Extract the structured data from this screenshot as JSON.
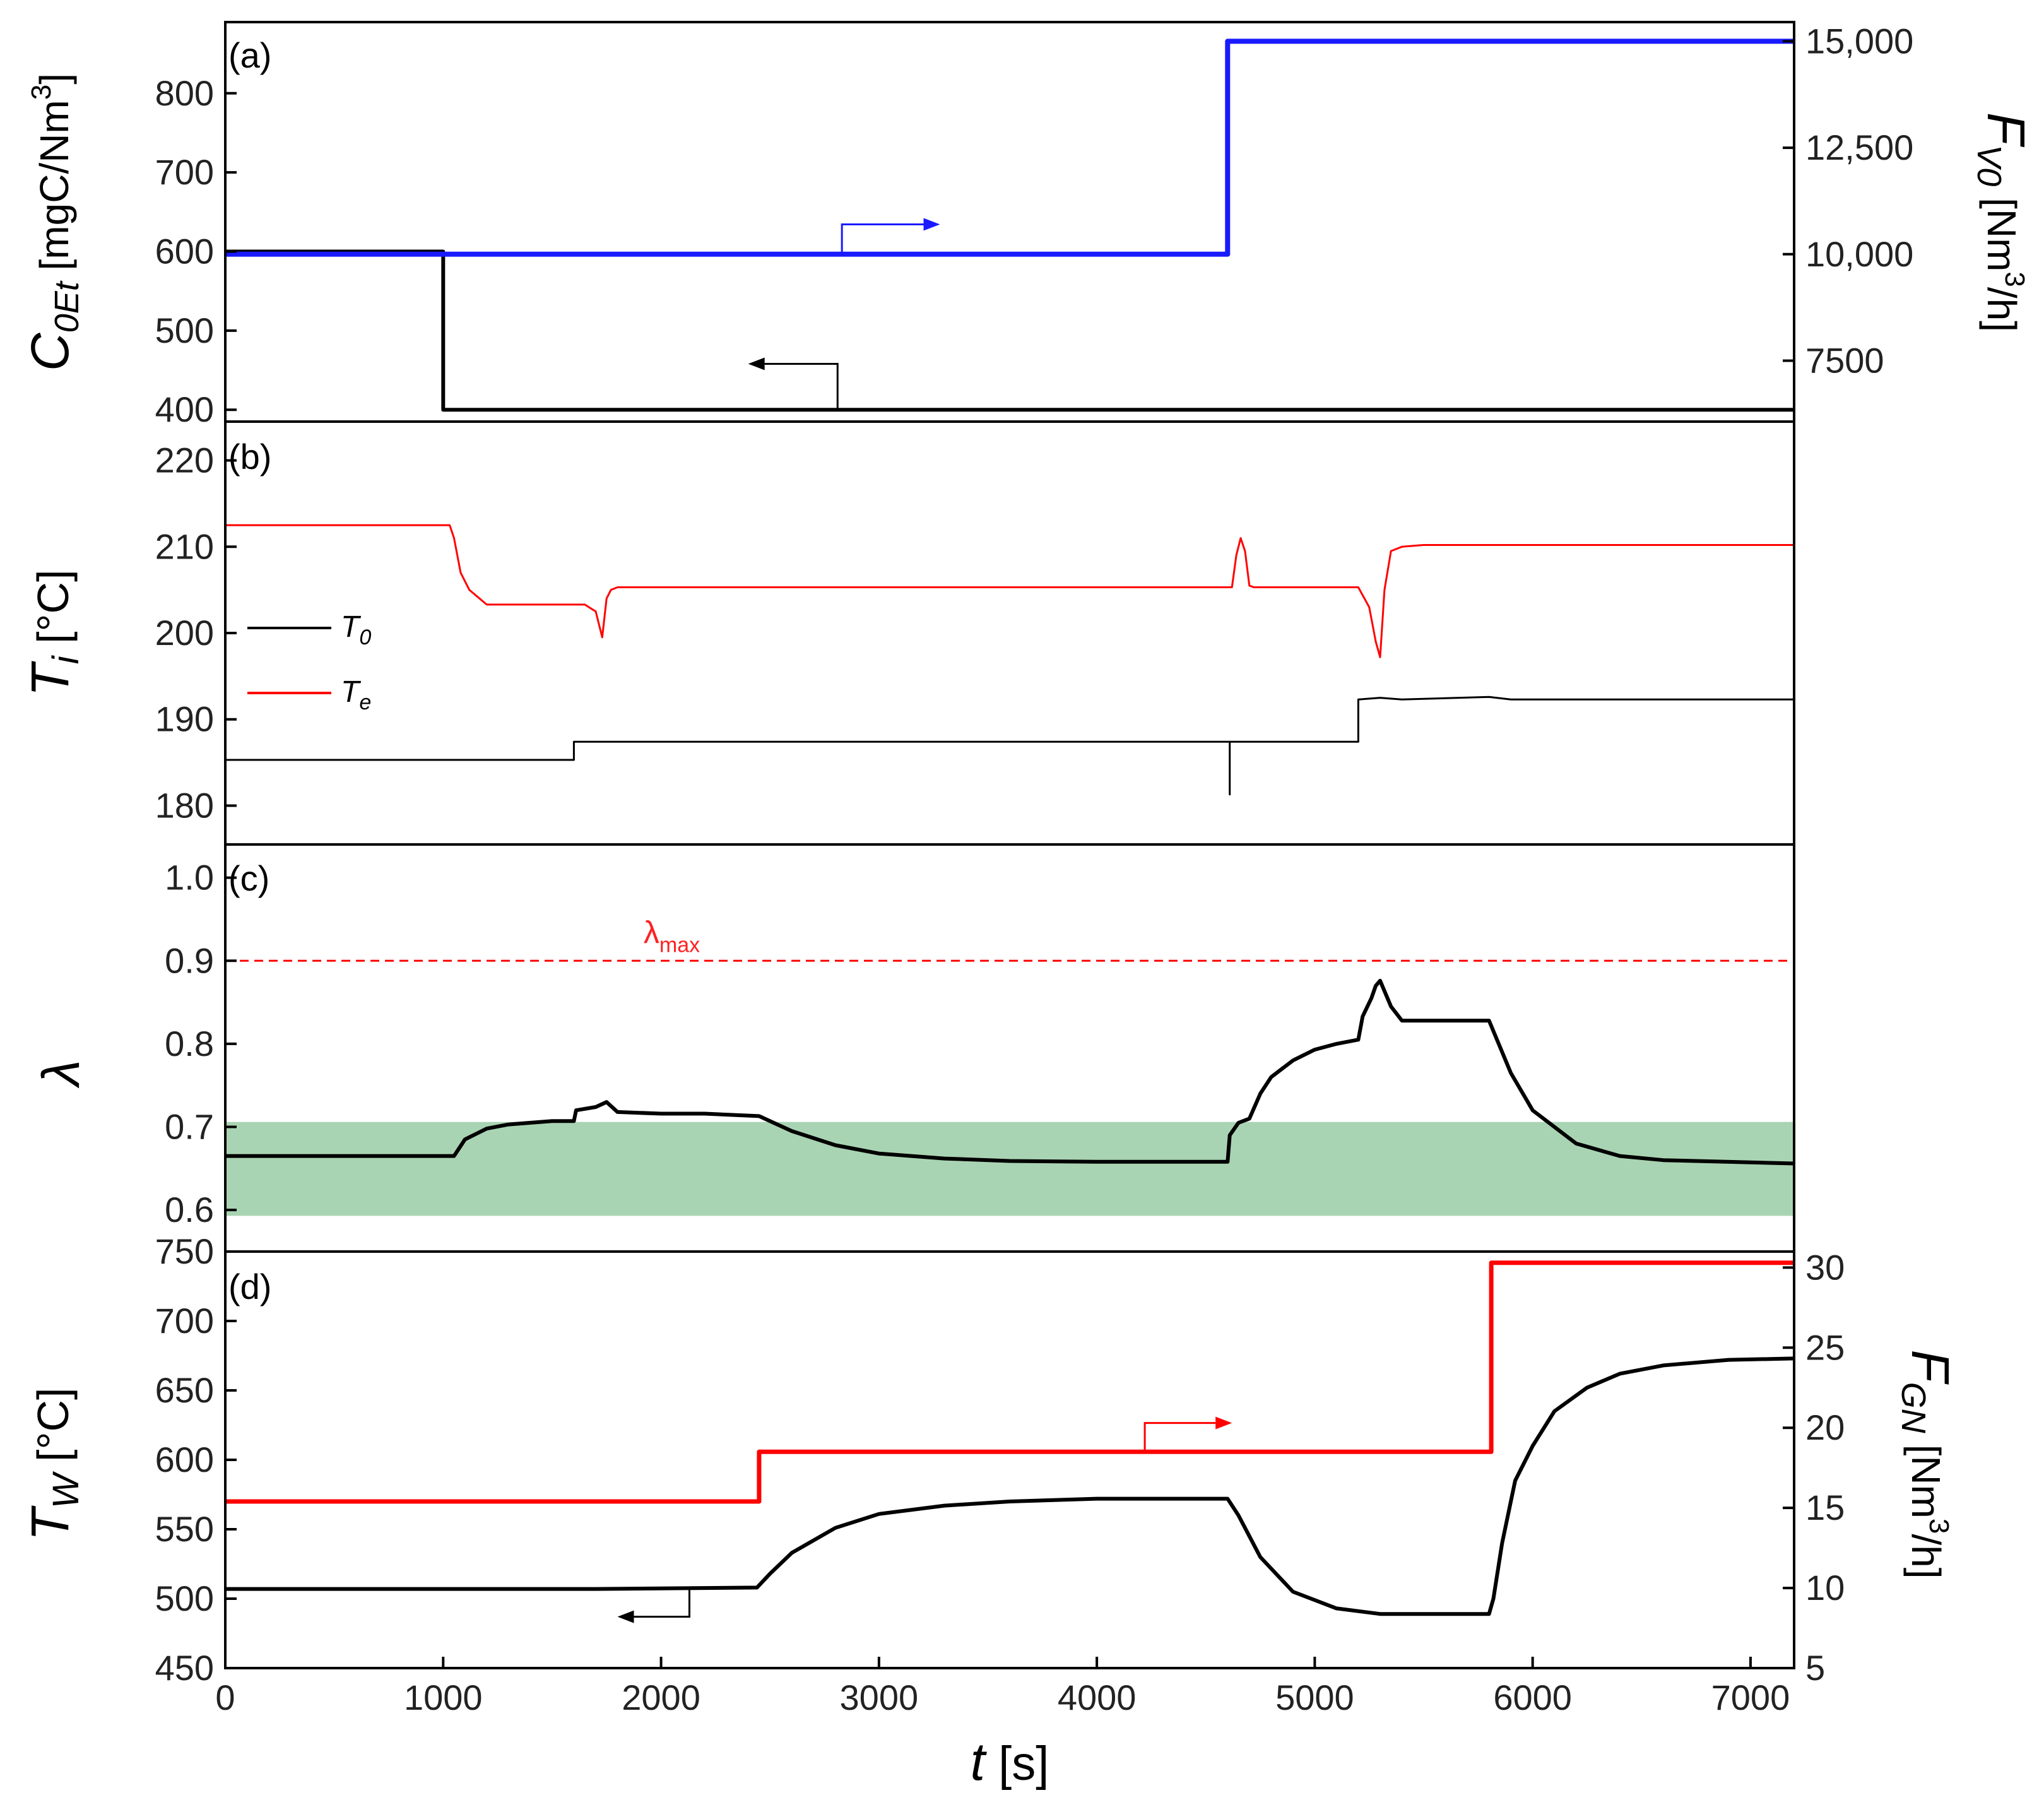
{
  "chart_data": [
    {
      "panel": "(a)",
      "type": "line",
      "ylabel": {
        "symbol": "C",
        "subscript": "0Et",
        "unit": " [mgC/Nm",
        "sup": "3",
        "unit_end": "]"
      },
      "y2label": {
        "symbol": "F",
        "subscript": "V0",
        "unit": " [Nm",
        "sup": "3",
        "unit_end": "/h]"
      },
      "xlim": [
        0,
        7200
      ],
      "ylim": [
        385,
        890
      ],
      "yticks": [
        400,
        500,
        600,
        700,
        800
      ],
      "y2lim": [
        6070,
        15450
      ],
      "y2ticks": [
        7500,
        10000,
        12500,
        15000
      ],
      "y2ticklabels": [
        "7500",
        "10,000",
        "12,500",
        "15,000"
      ],
      "series": [
        {
          "name": "C0Et",
          "axis": "left",
          "color": "#000000",
          "width": 6,
          "x": [
            0,
            1000,
            1000,
            7200
          ],
          "y": [
            600,
            600,
            400,
            400
          ]
        },
        {
          "name": "FV0",
          "axis": "right",
          "color": "#1a1aff",
          "width": 8,
          "x": [
            0,
            4600,
            4600,
            7200
          ],
          "y": [
            10000,
            10000,
            15000,
            15000
          ]
        }
      ],
      "annotations": [
        {
          "type": "arrow-right",
          "x0": 2830,
          "y_from": 10000,
          "y_to": 10700,
          "x1": 3280,
          "axis": "right",
          "color": "#1a1aff"
        },
        {
          "type": "arrow-left",
          "x0": 2810,
          "y_from": 400,
          "y_to": 458,
          "x1": 2400,
          "axis": "left",
          "color": "#000000"
        }
      ]
    },
    {
      "panel": "(b)",
      "type": "line",
      "ylabel": {
        "symbol": "T",
        "subscript": "i",
        "unit": " [°C]"
      },
      "xlim": [
        0,
        7200
      ],
      "ylim": [
        175.5,
        224.5
      ],
      "yticks": [
        180,
        190,
        200,
        210,
        220
      ],
      "legend": {
        "position": "left",
        "entries": [
          {
            "symbol": "T",
            "subscript": "0",
            "color": "#000000"
          },
          {
            "symbol": "T",
            "subscript": "e",
            "color": "#ff0000"
          }
        ]
      },
      "series": [
        {
          "name": "T0",
          "axis": "left",
          "color": "#000000",
          "width": 3,
          "x": [
            0,
            1600,
            1600,
            4610,
            4610,
            4610,
            4620,
            4620,
            5200,
            5200,
            5300,
            5400,
            5800,
            5900,
            7200
          ],
          "y": [
            185.3,
            185.3,
            187.4,
            187.4,
            181.3,
            187.4,
            187.4,
            187.4,
            187.4,
            192.3,
            192.5,
            192.3,
            192.6,
            192.3,
            192.3
          ]
        },
        {
          "name": "Te",
          "axis": "left",
          "color": "#ff0000",
          "width": 3,
          "x": [
            0,
            1030,
            1050,
            1080,
            1120,
            1200,
            1400,
            1650,
            1700,
            1730,
            1750,
            1770,
            1800,
            1900,
            2200,
            3000,
            4000,
            4620,
            4640,
            4660,
            4680,
            4700,
            4720,
            5000,
            5200,
            5250,
            5280,
            5300,
            5320,
            5350,
            5400,
            5500,
            6000,
            7200
          ],
          "y": [
            212.5,
            212.5,
            211,
            207,
            205,
            203.3,
            203.3,
            203.3,
            202.5,
            199.5,
            204,
            205,
            205.3,
            205.3,
            205.3,
            205.3,
            205.3,
            205.3,
            209,
            211,
            209.5,
            205.5,
            205.3,
            205.3,
            205.3,
            203,
            199,
            197.2,
            205,
            209.5,
            210,
            210.2,
            210.2,
            210.2
          ]
        }
      ]
    },
    {
      "panel": "(c)",
      "type": "line",
      "ylabel": {
        "symbol": "λ"
      },
      "xlim": [
        0,
        7200
      ],
      "ylim": [
        0.55,
        1.04
      ],
      "yticks": [
        0.6,
        0.7,
        0.8,
        0.9,
        1.0
      ],
      "yticklabels": [
        "0.6",
        "0.7",
        "0.8",
        "0.9",
        "1.0"
      ],
      "band": {
        "y0": 0.593,
        "y1": 0.706,
        "color": "#a9d4b3"
      },
      "reference_line": {
        "y": 0.9,
        "color": "#ff0000",
        "style": "dashed",
        "label": "λ",
        "label_sub": "max"
      },
      "series": [
        {
          "name": "lambda",
          "axis": "left",
          "color": "#000000",
          "width": 6,
          "x": [
            0,
            1050,
            1100,
            1200,
            1300,
            1500,
            1600,
            1610,
            1700,
            1750,
            1800,
            2000,
            2200,
            2450,
            2600,
            2800,
            3000,
            3300,
            3600,
            4000,
            4600,
            4610,
            4650,
            4700,
            4750,
            4800,
            4900,
            5000,
            5100,
            5200,
            5220,
            5260,
            5280,
            5300,
            5350,
            5400,
            5700,
            5800,
            5900,
            6000,
            6200,
            6400,
            6600,
            7200
          ],
          "y": [
            0.665,
            0.665,
            0.685,
            0.698,
            0.703,
            0.707,
            0.707,
            0.72,
            0.724,
            0.73,
            0.718,
            0.716,
            0.716,
            0.713,
            0.695,
            0.678,
            0.668,
            0.662,
            0.659,
            0.658,
            0.658,
            0.69,
            0.705,
            0.71,
            0.74,
            0.76,
            0.78,
            0.793,
            0.8,
            0.805,
            0.833,
            0.855,
            0.87,
            0.876,
            0.845,
            0.828,
            0.828,
            0.828,
            0.765,
            0.72,
            0.68,
            0.665,
            0.66,
            0.656
          ]
        }
      ]
    },
    {
      "panel": "(d)",
      "type": "line",
      "ylabel": {
        "symbol": "T",
        "subscript": "W",
        "unit": " [°C]"
      },
      "y2label": {
        "symbol": "F",
        "subscript": "GN",
        "unit": " [Nm",
        "sup": "3",
        "unit_end": "/h]"
      },
      "xlabel": {
        "symbol": "t",
        "unit": " [s]"
      },
      "xlim": [
        0,
        7200
      ],
      "xticks": [
        0,
        1000,
        2000,
        3000,
        4000,
        5000,
        6000,
        7000
      ],
      "ylim": [
        450,
        750
      ],
      "yticks": [
        450,
        500,
        550,
        600,
        650,
        700,
        750
      ],
      "y2lim": [
        5,
        31
      ],
      "y2ticks": [
        5,
        10,
        15,
        20,
        25,
        30
      ],
      "series": [
        {
          "name": "TW",
          "axis": "left",
          "color": "#000000",
          "width": 6,
          "x": [
            0,
            1700,
            2440,
            2500,
            2600,
            2800,
            3000,
            3300,
            3600,
            4000,
            4600,
            4650,
            4750,
            4900,
            5100,
            5300,
            5500,
            5800,
            5820,
            5860,
            5920,
            6000,
            6100,
            6250,
            6400,
            6600,
            6900,
            7200
          ],
          "y": [
            507,
            507,
            508,
            518,
            533,
            551,
            561,
            567,
            570,
            572,
            572,
            560,
            530,
            505,
            493,
            489,
            489,
            489,
            500,
            540,
            585,
            610,
            635,
            652,
            662,
            668,
            672,
            673
          ]
        },
        {
          "name": "FGN",
          "axis": "right",
          "color": "#ff0000",
          "width": 7,
          "x": [
            0,
            2450,
            2450,
            5810,
            5810,
            7200
          ],
          "y": [
            15.4,
            15.4,
            18.5,
            18.5,
            30.3,
            30.3
          ]
        }
      ],
      "annotations": [
        {
          "type": "arrow-right",
          "x0": 4220,
          "y_from": 18.5,
          "y_to": 20.3,
          "x1": 4620,
          "axis": "right",
          "color": "#ff0000"
        },
        {
          "type": "arrow-left",
          "x0": 2130,
          "y_from": 507,
          "y_to": 487,
          "x1": 1800,
          "axis": "left",
          "color": "#000000"
        }
      ]
    }
  ]
}
